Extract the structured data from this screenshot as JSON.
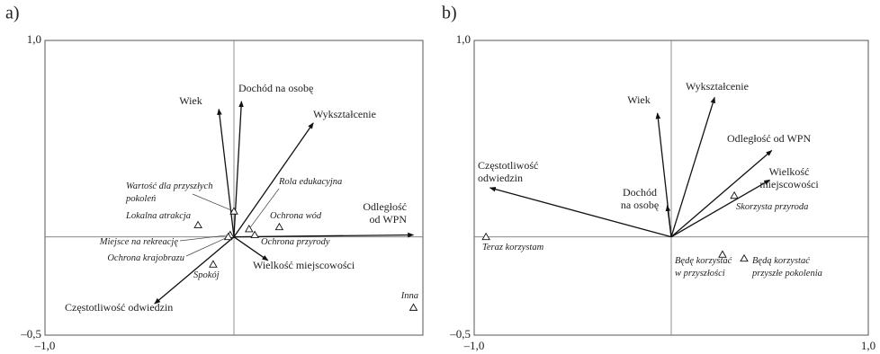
{
  "chart_data": [
    {
      "type": "biplot",
      "panel": "a)",
      "xlim": [
        -1,
        1
      ],
      "ylim": [
        -0.5,
        1
      ],
      "xticks": [
        {
          "value": -1,
          "label": "–1,0"
        }
      ],
      "yticks": [
        {
          "value": -0.5,
          "label": "–0,5"
        },
        {
          "value": 1,
          "label": "1,0"
        }
      ],
      "vectors": [
        {
          "label": [
            "Wiek"
          ],
          "x": -0.08,
          "y": 0.65
        },
        {
          "label": [
            "Dochód na osobę"
          ],
          "x": 0.04,
          "y": 0.69
        },
        {
          "label": [
            "Wykształcenie"
          ],
          "x": 0.42,
          "y": 0.58
        },
        {
          "label": [
            "Odległość",
            "od WPN"
          ],
          "x": 0.95,
          "y": 0.01
        },
        {
          "label": [
            "Wielkość miejscowości"
          ],
          "x": 0.18,
          "y": -0.12
        },
        {
          "label": [
            "Częstotliwość odwiedzin"
          ],
          "x": -0.42,
          "y": -0.34
        }
      ],
      "points": [
        {
          "label": [
            "Wartość dla przyszłych",
            "pokoleń"
          ],
          "x": 0.0,
          "y": 0.13
        },
        {
          "label": [
            "Lokalna atrakcja"
          ],
          "x": -0.19,
          "y": 0.06
        },
        {
          "label": [
            "Rola edukacyjna"
          ],
          "x": 0.08,
          "y": 0.04
        },
        {
          "label": [
            "Ochrona wód"
          ],
          "x": 0.24,
          "y": 0.05
        },
        {
          "label": [
            "Ochrona przyrody"
          ],
          "x": 0.11,
          "y": 0.01
        },
        {
          "label": [
            "Miejsce na rekreację"
          ],
          "x": -0.02,
          "y": 0.01
        },
        {
          "label": [
            "Ochrona krajobrazu"
          ],
          "x": -0.03,
          "y": 0.0
        },
        {
          "label": [
            "Spokój"
          ],
          "x": -0.11,
          "y": -0.14
        },
        {
          "label": [
            "Inna"
          ],
          "x": 0.95,
          "y": -0.36
        }
      ]
    },
    {
      "type": "biplot",
      "panel": "b)",
      "xlim": [
        -1,
        1
      ],
      "ylim": [
        -0.5,
        1
      ],
      "xticks": [
        {
          "value": -1,
          "label": "–1,0"
        },
        {
          "value": 1,
          "label": "1,0"
        }
      ],
      "yticks": [
        {
          "value": -0.5,
          "label": "–0,5"
        },
        {
          "value": 1,
          "label": "1,0"
        }
      ],
      "vectors": [
        {
          "label": [
            "Wiek"
          ],
          "x": -0.07,
          "y": 0.63
        },
        {
          "label": [
            "Wykształcenie"
          ],
          "x": 0.22,
          "y": 0.71
        },
        {
          "label": [
            "Odległość od WPN"
          ],
          "x": 0.51,
          "y": 0.44
        },
        {
          "label": [
            "Wielkość",
            "miejscowości"
          ],
          "x": 0.5,
          "y": 0.29
        },
        {
          "label": [
            "Dochód",
            "na osobę"
          ],
          "x": -0.02,
          "y": 0.16
        },
        {
          "label": [
            "Częstotliwość",
            "odwiedzin"
          ],
          "x": -0.92,
          "y": 0.25
        }
      ],
      "points": [
        {
          "label": [
            "Skorzysta przyroda"
          ],
          "x": 0.32,
          "y": 0.21
        },
        {
          "label": [
            "Teraz korzystam"
          ],
          "x": -0.94,
          "y": 0.0
        },
        {
          "label": [
            "Będę korzystać",
            "w przyszłości"
          ],
          "x": 0.26,
          "y": -0.09
        },
        {
          "label": [
            "Będą korzystać",
            "przyszłe pokolenia"
          ],
          "x": 0.37,
          "y": -0.11
        }
      ]
    }
  ]
}
